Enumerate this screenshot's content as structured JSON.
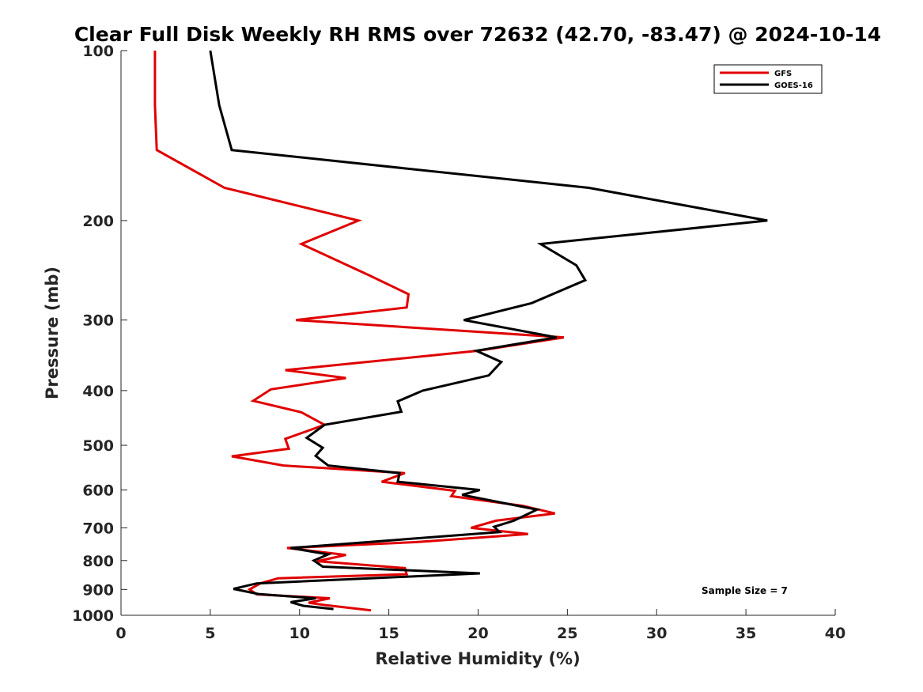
{
  "chart_data": {
    "type": "line",
    "title": "Clear Full Disk Weekly RH RMS over 72632 (42.70, -83.47) @ 2024-10-14",
    "xlabel": "Relative Humidity (%)",
    "ylabel": "Pressure (mb)",
    "xlim": [
      0,
      40
    ],
    "ylim": [
      100,
      1000
    ],
    "y_scale": "log",
    "y_reversed": true,
    "xticks": [
      0,
      5,
      10,
      15,
      20,
      25,
      30,
      35,
      40
    ],
    "yticks": [
      100,
      200,
      300,
      400,
      500,
      600,
      700,
      800,
      900,
      1000
    ],
    "grid": false,
    "legend_position": "top-right",
    "annotation": "Sample Size = 7",
    "series": [
      {
        "name": "GFS",
        "color": "#e00000",
        "points": [
          [
            1.9,
            100
          ],
          [
            1.9,
            125
          ],
          [
            2.0,
            150
          ],
          [
            5.8,
            175
          ],
          [
            13.3,
            200
          ],
          [
            10.1,
            220
          ],
          [
            13.9,
            250
          ],
          [
            16.1,
            270
          ],
          [
            16.0,
            285
          ],
          [
            9.8,
            300
          ],
          [
            24.8,
            322
          ],
          [
            20.0,
            340
          ],
          [
            9.2,
            368
          ],
          [
            12.6,
            380
          ],
          [
            8.4,
            398
          ],
          [
            7.4,
            417
          ],
          [
            10.1,
            437
          ],
          [
            11.4,
            460
          ],
          [
            9.2,
            487
          ],
          [
            9.4,
            507
          ],
          [
            6.2,
            523
          ],
          [
            9.1,
            543
          ],
          [
            15.9,
            560
          ],
          [
            14.6,
            580
          ],
          [
            18.7,
            602
          ],
          [
            18.5,
            615
          ],
          [
            22.5,
            640
          ],
          [
            24.3,
            660
          ],
          [
            21.0,
            680
          ],
          [
            19.6,
            700
          ],
          [
            22.8,
            718
          ],
          [
            16.5,
            742
          ],
          [
            9.3,
            760
          ],
          [
            12.6,
            782
          ],
          [
            11.0,
            802
          ],
          [
            15.9,
            825
          ],
          [
            16.0,
            846
          ],
          [
            8.8,
            860
          ],
          [
            7.8,
            878
          ],
          [
            7.2,
            900
          ],
          [
            7.6,
            918
          ],
          [
            11.7,
            933
          ],
          [
            10.5,
            950
          ],
          [
            11.5,
            960
          ],
          [
            14.0,
            980
          ]
        ]
      },
      {
        "name": "GOES-16",
        "color": "#000000",
        "points": [
          [
            5.0,
            100
          ],
          [
            5.5,
            125
          ],
          [
            6.2,
            150
          ],
          [
            26.2,
            175
          ],
          [
            36.2,
            200
          ],
          [
            23.5,
            220
          ],
          [
            25.5,
            240
          ],
          [
            26.0,
            255
          ],
          [
            23.0,
            280
          ],
          [
            19.2,
            300
          ],
          [
            24.4,
            322
          ],
          [
            19.9,
            340
          ],
          [
            21.3,
            356
          ],
          [
            20.6,
            376
          ],
          [
            16.9,
            400
          ],
          [
            15.5,
            418
          ],
          [
            15.7,
            436
          ],
          [
            11.4,
            460
          ],
          [
            10.4,
            485
          ],
          [
            11.3,
            505
          ],
          [
            10.9,
            522
          ],
          [
            11.6,
            543
          ],
          [
            15.6,
            560
          ],
          [
            15.5,
            580
          ],
          [
            20.1,
            600
          ],
          [
            19.1,
            612
          ],
          [
            23.3,
            650
          ],
          [
            22.0,
            680
          ],
          [
            20.9,
            697
          ],
          [
            21.2,
            712
          ],
          [
            9.5,
            760
          ],
          [
            11.6,
            780
          ],
          [
            10.8,
            800
          ],
          [
            11.3,
            820
          ],
          [
            20.1,
            843
          ],
          [
            7.6,
            878
          ],
          [
            6.3,
            898
          ],
          [
            7.7,
            917
          ],
          [
            10.9,
            933
          ],
          [
            9.5,
            948
          ],
          [
            10.2,
            962
          ],
          [
            11.9,
            975
          ]
        ]
      }
    ]
  }
}
